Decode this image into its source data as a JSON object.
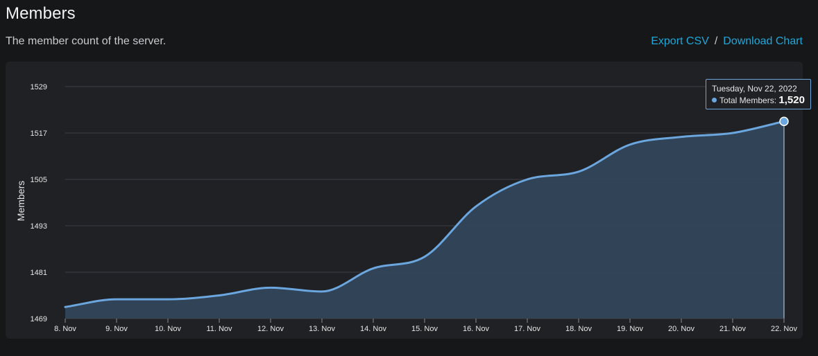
{
  "header": {
    "title": "Members",
    "subtitle": "The member count of the server.",
    "export_label": "Export CSV",
    "separator": "/",
    "download_label": "Download Chart"
  },
  "tooltip": {
    "date": "Tuesday, Nov 22, 2022",
    "series_label": "Total Members:",
    "value": "1,520"
  },
  "colors": {
    "line": "#6ba7de",
    "area": "#33465a",
    "grid": "#3d4046",
    "background": "#1f2125",
    "link": "#1fa7d9"
  },
  "chart_data": {
    "type": "area",
    "ylabel": "Members",
    "xlabel": "",
    "x": [
      "8. Nov",
      "9. Nov",
      "10. Nov",
      "11. Nov",
      "12. Nov",
      "13. Nov",
      "14. Nov",
      "15. Nov",
      "16. Nov",
      "17. Nov",
      "18. Nov",
      "19. Nov",
      "20. Nov",
      "21. Nov",
      "22. Nov"
    ],
    "series": [
      {
        "name": "Total Members",
        "values": [
          1472,
          1474,
          1474,
          1475,
          1477,
          1476,
          1482,
          1485,
          1498,
          1505,
          1507,
          1514,
          1516,
          1517,
          1520
        ]
      }
    ],
    "ylim": [
      1469,
      1529
    ],
    "yticks": [
      1469,
      1481,
      1493,
      1505,
      1517,
      1529
    ],
    "grid": true,
    "legend": "none"
  }
}
